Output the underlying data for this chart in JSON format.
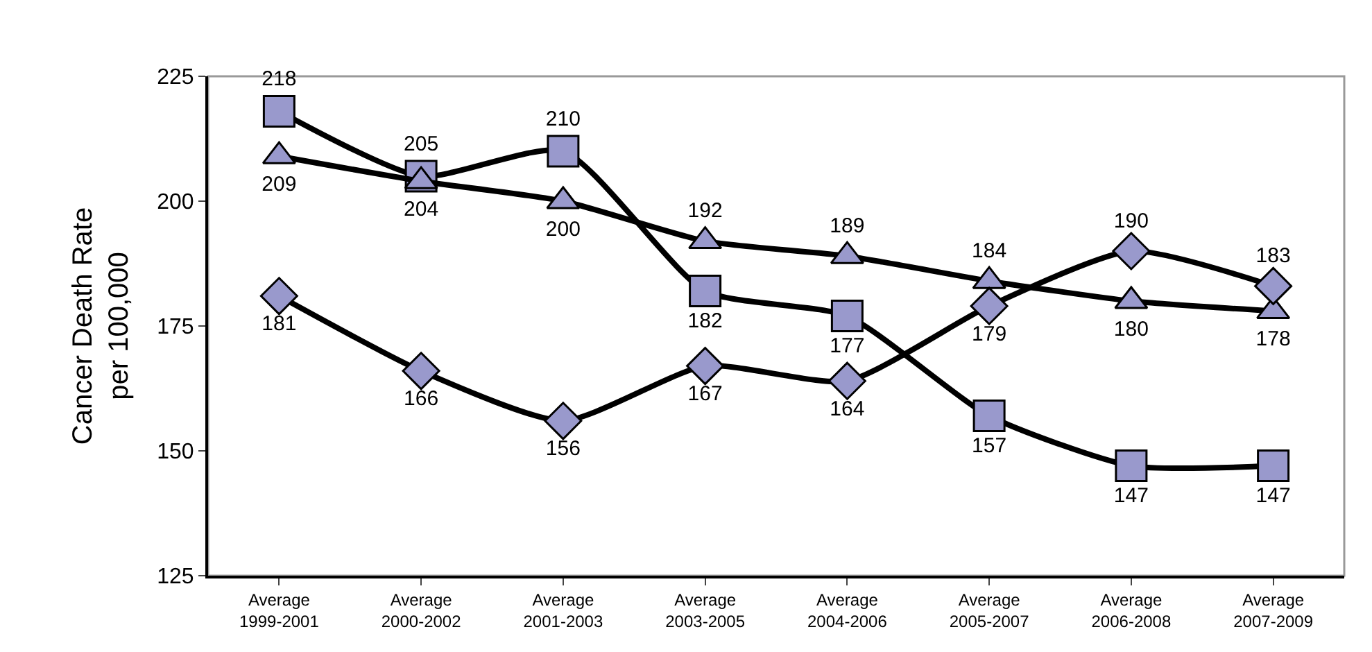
{
  "chart_data": {
    "type": "line",
    "ylabel": "Cancer Death Rate\nper 100,000",
    "categories": [
      "Average\n1999-2001",
      "Average\n2000-2002",
      "Average\n2001-2003",
      "Average\n2003-2005",
      "Average\n2004-2006",
      "Average\n2005-2007",
      "Average\n2006-2008",
      "Average\n2007-2009"
    ],
    "series": [
      {
        "color": "#9999cc",
        "marker": "square",
        "values": [
          218,
          205,
          210,
          182,
          177,
          157,
          147,
          147
        ]
      },
      {
        "color": "#9999cc",
        "marker": "triangle",
        "values": [
          209,
          204,
          200,
          192,
          189,
          184,
          180,
          178
        ]
      },
      {
        "color": "#9999cc",
        "marker": "diamond",
        "values": [
          181,
          166,
          156,
          167,
          164,
          179,
          190,
          183
        ]
      }
    ],
    "ylim": [
      125,
      225
    ],
    "yticks": [
      125,
      150,
      175,
      200,
      225
    ],
    "grid": false,
    "data_labels": true
  }
}
